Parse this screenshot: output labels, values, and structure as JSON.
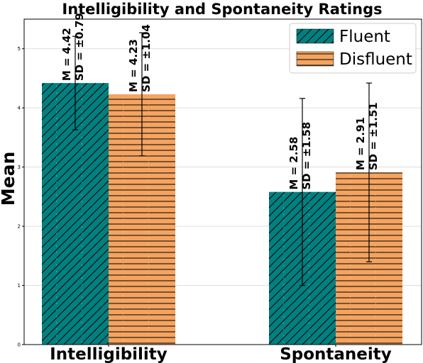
{
  "chart_data": {
    "type": "bar",
    "title": "Intelligibility and Spontaneity Ratings",
    "xlabel": "",
    "ylabel": "Mean",
    "categories": [
      "Intelligibility",
      "Spontaneity"
    ],
    "ylim": [
      0,
      5.5
    ],
    "yticks": [
      "0",
      "1",
      "2",
      "3",
      "4",
      "5"
    ],
    "grid": "horizontal",
    "legend_position": "top-right",
    "series": [
      {
        "name": "Fluent",
        "color": "#008080",
        "hatch": "diagonal",
        "values": [
          4.42,
          2.58
        ],
        "errors": [
          0.79,
          1.58
        ],
        "labels": [
          [
            "M = 4.42",
            "SD = ±0.79"
          ],
          [
            "M = 2.58",
            "SD = ±1.58"
          ]
        ]
      },
      {
        "name": "Disfluent",
        "color": "#f4a460",
        "hatch": "horizontal",
        "values": [
          4.23,
          2.91
        ],
        "errors": [
          1.04,
          1.51
        ],
        "labels": [
          [
            "M = 4.23",
            "SD = ±1.04"
          ],
          [
            "M = 2.91",
            "SD = ±1.51"
          ]
        ]
      }
    ]
  }
}
